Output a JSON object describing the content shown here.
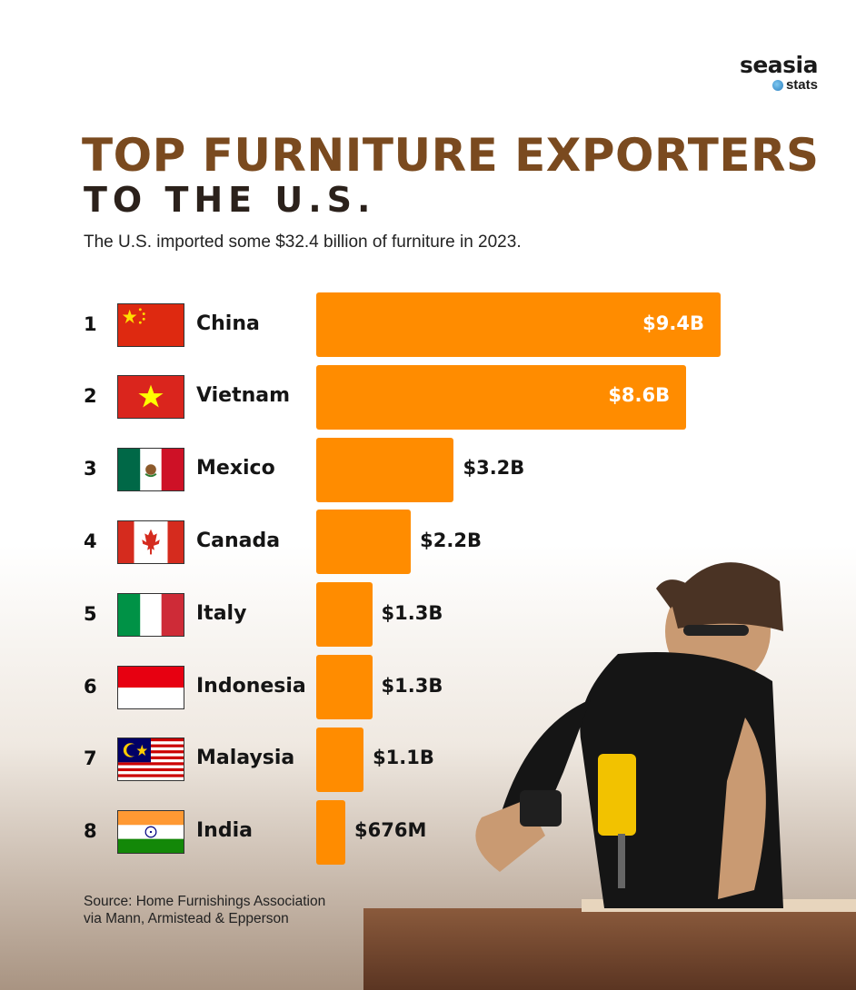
{
  "brand": {
    "name": "seasia",
    "sub": "stats"
  },
  "header": {
    "title_line1": "TOP FURNITURE EXPORTERS",
    "title_line2": "TO THE U.S.",
    "subtitle": "The U.S. imported some $32.4 billion of furniture in 2023."
  },
  "source": {
    "line1": "Source: Home Furnishings Association",
    "line2": "via Mann, Armistead & Epperson"
  },
  "colors": {
    "bar": "#ff8c00",
    "title": "#7a4a1f"
  },
  "chart_data": {
    "type": "bar",
    "orientation": "horizontal",
    "categories": [
      "China",
      "Vietnam",
      "Mexico",
      "Canada",
      "Italy",
      "Indonesia",
      "Malaysia",
      "India"
    ],
    "ranks": [
      "1",
      "2",
      "3",
      "4",
      "5",
      "6",
      "7",
      "8"
    ],
    "values": [
      9.4,
      8.6,
      3.2,
      2.2,
      1.3,
      1.3,
      1.1,
      0.676
    ],
    "value_labels": [
      "$9.4B",
      "$8.6B",
      "$3.2B",
      "$2.2B",
      "$1.3B",
      "$1.3B",
      "$1.1B",
      "$676M"
    ],
    "flags": [
      "china-flag",
      "vietnam-flag",
      "mexico-flag",
      "canada-flag",
      "italy-flag",
      "indonesia-flag",
      "malaysia-flag",
      "india-flag"
    ],
    "xlim": [
      0,
      9.4
    ],
    "grid": false
  }
}
